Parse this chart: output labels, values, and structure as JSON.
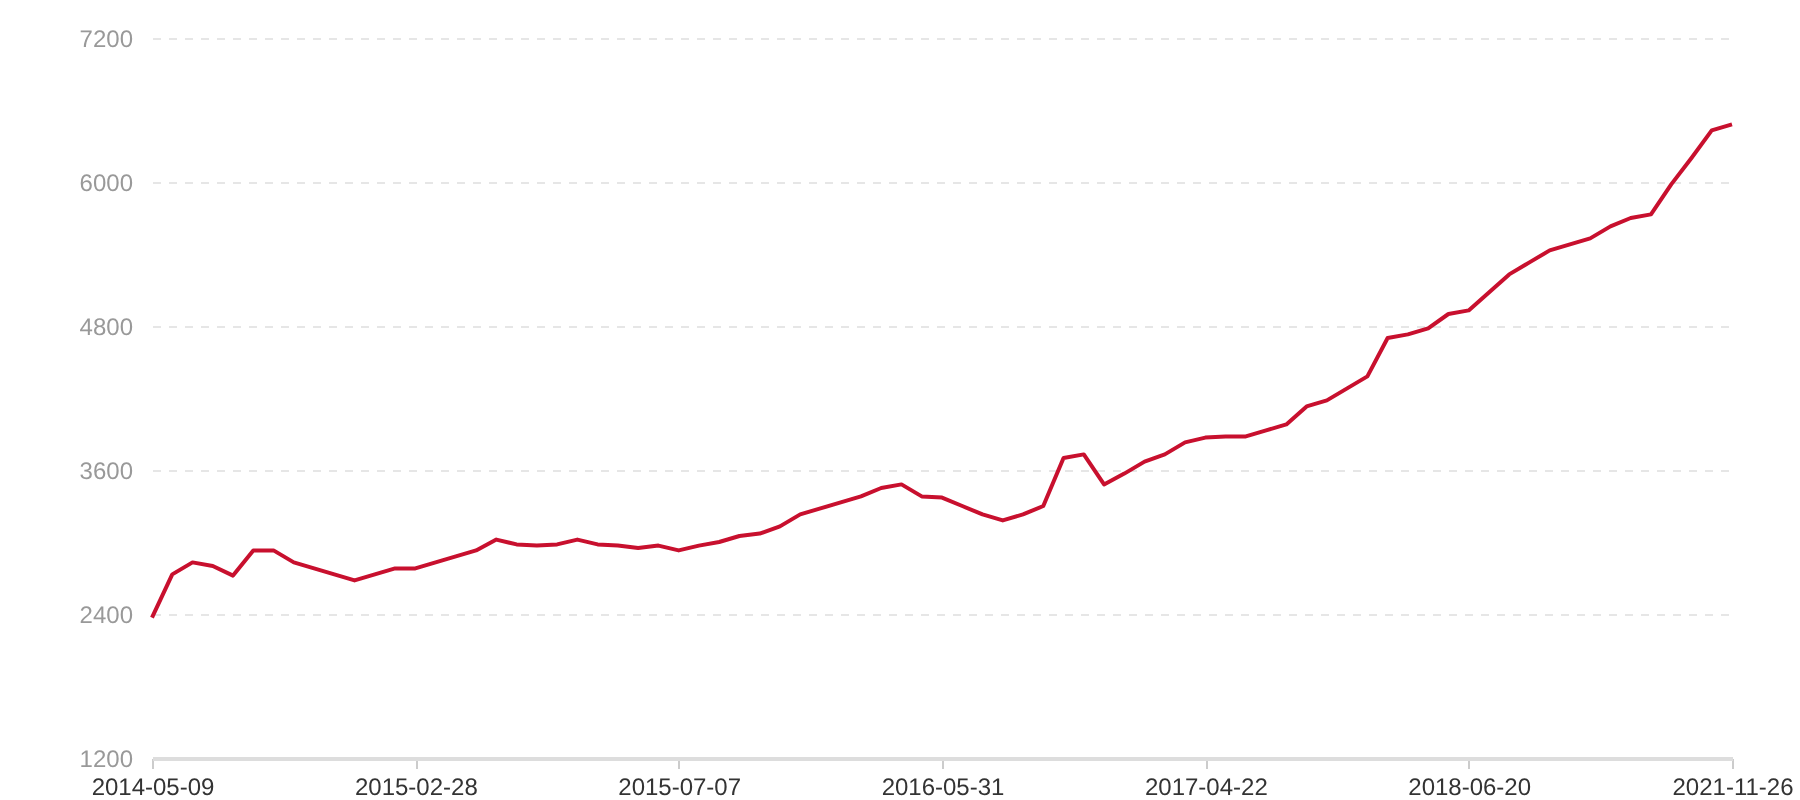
{
  "chart_data": {
    "type": "line",
    "categories": [
      "2014-05-09",
      null,
      null,
      null,
      null,
      null,
      null,
      null,
      null,
      null,
      null,
      null,
      null,
      "2015-02-28",
      null,
      null,
      null,
      null,
      null,
      null,
      null,
      null,
      null,
      null,
      null,
      null,
      "2015-07-07",
      null,
      null,
      null,
      null,
      null,
      null,
      null,
      null,
      null,
      null,
      null,
      null,
      "2016-05-31",
      null,
      null,
      null,
      null,
      null,
      null,
      null,
      null,
      null,
      null,
      null,
      null,
      "2017-04-22",
      null,
      null,
      null,
      null,
      null,
      null,
      null,
      null,
      null,
      null,
      null,
      null,
      "2018-06-20",
      null,
      null,
      null,
      null,
      null,
      null,
      null,
      null,
      null,
      null,
      null,
      null,
      "2021-11-26"
    ],
    "series": [
      {
        "color": "#c8102e",
        "values": [
          2370,
          2730,
          2830,
          2800,
          2720,
          2930,
          2930,
          2830,
          2780,
          2730,
          2680,
          2730,
          2780,
          2780,
          2830,
          2880,
          2930,
          3020,
          2980,
          2970,
          2980,
          3020,
          2980,
          2970,
          2950,
          2970,
          2930,
          2970,
          3000,
          3050,
          3070,
          3130,
          3230,
          3280,
          3330,
          3380,
          3450,
          3480,
          3380,
          3370,
          3300,
          3230,
          3180,
          3230,
          3300,
          3700,
          3730,
          3480,
          3570,
          3670,
          3730,
          3830,
          3870,
          3880,
          3880,
          3930,
          3980,
          4130,
          4180,
          4280,
          4380,
          4700,
          4730,
          4780,
          4900,
          4930,
          5080,
          5230,
          5330,
          5430,
          5480,
          5530,
          5630,
          5700,
          5730,
          5980,
          6200,
          6430,
          6480
        ]
      }
    ],
    "ylim": [
      1200,
      7200
    ],
    "yticks": [
      1200,
      2400,
      3600,
      4800,
      6000,
      7200
    ],
    "grid": "y",
    "line_style": "solid"
  }
}
